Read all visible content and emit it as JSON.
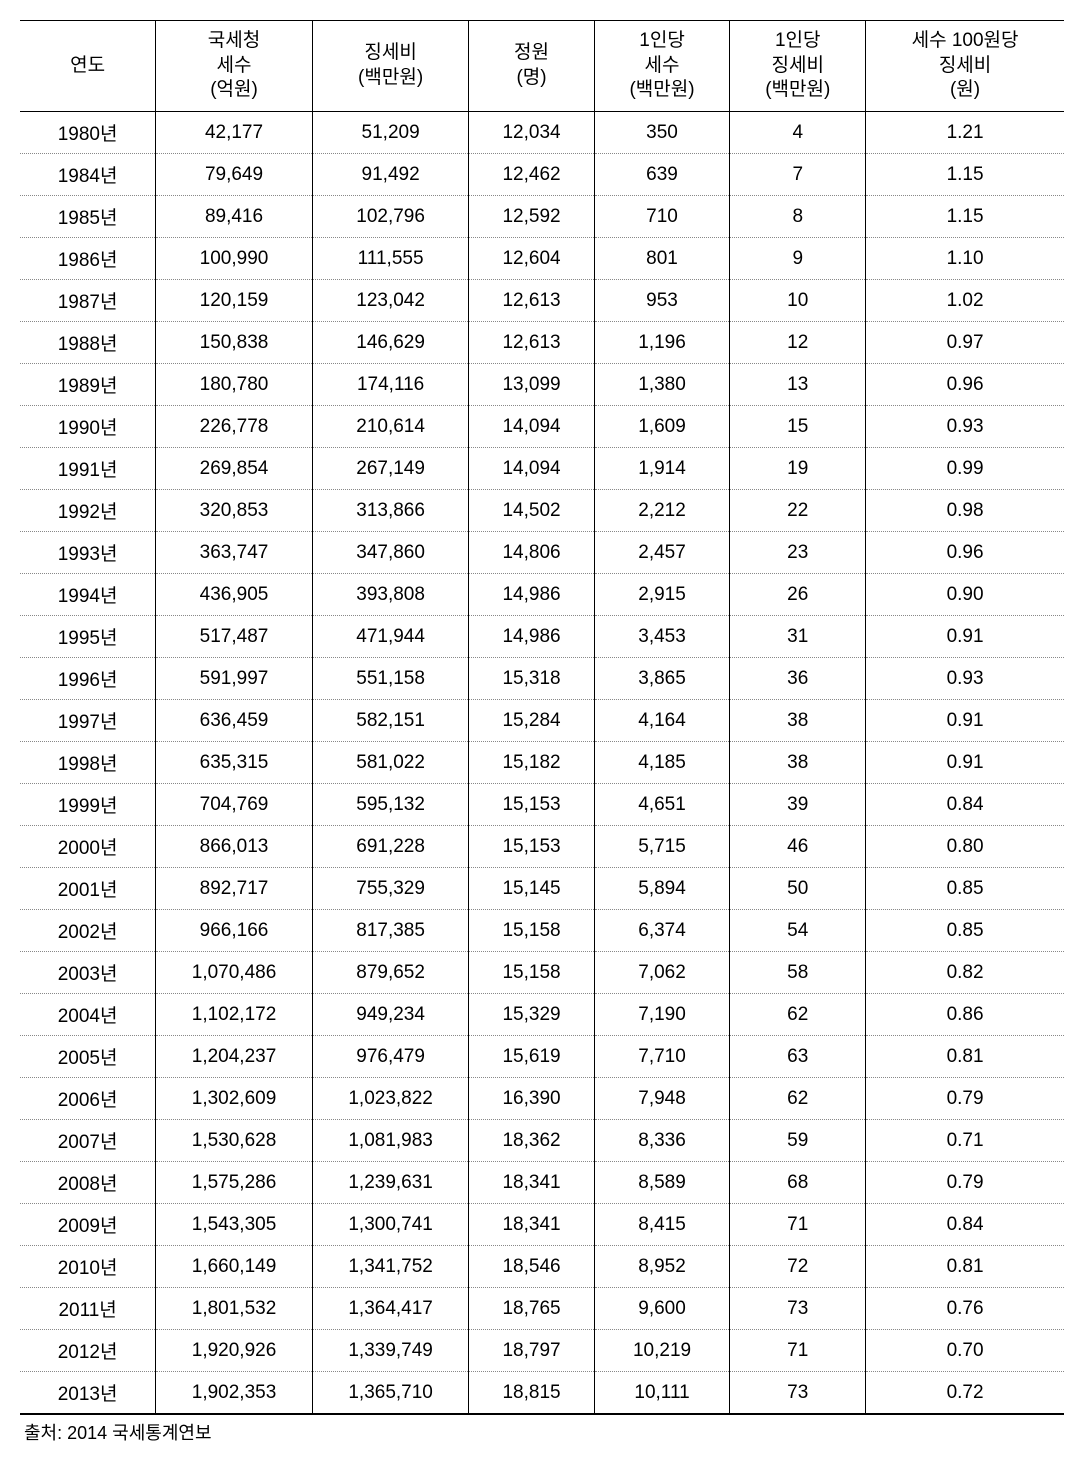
{
  "table": {
    "type": "table",
    "background_color": "#ffffff",
    "border_color": "#000000",
    "dotted_row_border_color": "#888888",
    "font_size_pt": 14,
    "text_color": "#000000",
    "columns": [
      {
        "label": "연도",
        "width_pct": 13,
        "align": "center"
      },
      {
        "label": "국세청\n세수\n(억원)",
        "width_pct": 15,
        "align": "center"
      },
      {
        "label": "징세비\n(백만원)",
        "width_pct": 15,
        "align": "center"
      },
      {
        "label": "정원\n(명)",
        "width_pct": 12,
        "align": "center"
      },
      {
        "label": "1인당\n세수\n(백만원)",
        "width_pct": 13,
        "align": "center"
      },
      {
        "label": "1인당\n징세비\n(백만원)",
        "width_pct": 13,
        "align": "center"
      },
      {
        "label": "세수 100원당\n징세비\n(원)",
        "width_pct": 19,
        "align": "center"
      }
    ],
    "rows": [
      [
        "1980년",
        "42,177",
        "51,209",
        "12,034",
        "350",
        "4",
        "1.21"
      ],
      [
        "1984년",
        "79,649",
        "91,492",
        "12,462",
        "639",
        "7",
        "1.15"
      ],
      [
        "1985년",
        "89,416",
        "102,796",
        "12,592",
        "710",
        "8",
        "1.15"
      ],
      [
        "1986년",
        "100,990",
        "111,555",
        "12,604",
        "801",
        "9",
        "1.10"
      ],
      [
        "1987년",
        "120,159",
        "123,042",
        "12,613",
        "953",
        "10",
        "1.02"
      ],
      [
        "1988년",
        "150,838",
        "146,629",
        "12,613",
        "1,196",
        "12",
        "0.97"
      ],
      [
        "1989년",
        "180,780",
        "174,116",
        "13,099",
        "1,380",
        "13",
        "0.96"
      ],
      [
        "1990년",
        "226,778",
        "210,614",
        "14,094",
        "1,609",
        "15",
        "0.93"
      ],
      [
        "1991년",
        "269,854",
        "267,149",
        "14,094",
        "1,914",
        "19",
        "0.99"
      ],
      [
        "1992년",
        "320,853",
        "313,866",
        "14,502",
        "2,212",
        "22",
        "0.98"
      ],
      [
        "1993년",
        "363,747",
        "347,860",
        "14,806",
        "2,457",
        "23",
        "0.96"
      ],
      [
        "1994년",
        "436,905",
        "393,808",
        "14,986",
        "2,915",
        "26",
        "0.90"
      ],
      [
        "1995년",
        "517,487",
        "471,944",
        "14,986",
        "3,453",
        "31",
        "0.91"
      ],
      [
        "1996년",
        "591,997",
        "551,158",
        "15,318",
        "3,865",
        "36",
        "0.93"
      ],
      [
        "1997년",
        "636,459",
        "582,151",
        "15,284",
        "4,164",
        "38",
        "0.91"
      ],
      [
        "1998년",
        "635,315",
        "581,022",
        "15,182",
        "4,185",
        "38",
        "0.91"
      ],
      [
        "1999년",
        "704,769",
        "595,132",
        "15,153",
        "4,651",
        "39",
        "0.84"
      ],
      [
        "2000년",
        "866,013",
        "691,228",
        "15,153",
        "5,715",
        "46",
        "0.80"
      ],
      [
        "2001년",
        "892,717",
        "755,329",
        "15,145",
        "5,894",
        "50",
        "0.85"
      ],
      [
        "2002년",
        "966,166",
        "817,385",
        "15,158",
        "6,374",
        "54",
        "0.85"
      ],
      [
        "2003년",
        "1,070,486",
        "879,652",
        "15,158",
        "7,062",
        "58",
        "0.82"
      ],
      [
        "2004년",
        "1,102,172",
        "949,234",
        "15,329",
        "7,190",
        "62",
        "0.86"
      ],
      [
        "2005년",
        "1,204,237",
        "976,479",
        "15,619",
        "7,710",
        "63",
        "0.81"
      ],
      [
        "2006년",
        "1,302,609",
        "1,023,822",
        "16,390",
        "7,948",
        "62",
        "0.79"
      ],
      [
        "2007년",
        "1,530,628",
        "1,081,983",
        "18,362",
        "8,336",
        "59",
        "0.71"
      ],
      [
        "2008년",
        "1,575,286",
        "1,239,631",
        "18,341",
        "8,589",
        "68",
        "0.79"
      ],
      [
        "2009년",
        "1,543,305",
        "1,300,741",
        "18,341",
        "8,415",
        "71",
        "0.84"
      ],
      [
        "2010년",
        "1,660,149",
        "1,341,752",
        "18,546",
        "8,952",
        "72",
        "0.81"
      ],
      [
        "2011년",
        "1,801,532",
        "1,364,417",
        "18,765",
        "9,600",
        "73",
        "0.76"
      ],
      [
        "2012년",
        "1,920,926",
        "1,339,749",
        "18,797",
        "10,219",
        "71",
        "0.70"
      ],
      [
        "2013년",
        "1,902,353",
        "1,365,710",
        "18,815",
        "10,111",
        "73",
        "0.72"
      ]
    ]
  },
  "source_note": "출처: 2014 국세통계연보"
}
